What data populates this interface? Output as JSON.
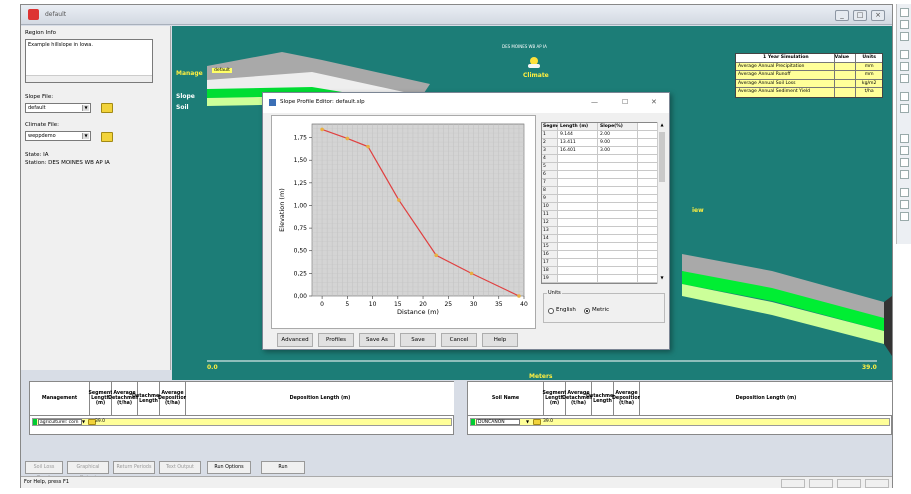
{
  "window": {
    "title": "default",
    "buttons": [
      "_",
      "□",
      "×"
    ]
  },
  "left_panel": {
    "region_label": "Region Info",
    "region_text": "Example hillslope in Iowa.",
    "slope_label": "Slope File:",
    "slope_value": "default",
    "climate_label": "Climate File:",
    "climate_value": "weppdemo",
    "state": "State: IA",
    "station": "Station: DES MOINES WB AP IA"
  },
  "canvas": {
    "station_title": "DES MOINES WB AP IA",
    "climate_label": "Climate",
    "management_label": "Manage",
    "management_tag": "default",
    "slope_label": "Slope",
    "soil_label": "Soil",
    "view_label": "iew",
    "axis_start": "0.0",
    "axis_end": "39.0",
    "axis_label": "Meters"
  },
  "sim_table": {
    "headers": [
      "1 Year Simulation",
      "Value",
      "Units"
    ],
    "rows": [
      {
        "name": "Average Annual Precipitation",
        "value": "",
        "unit": "mm"
      },
      {
        "name": "Average Annual Runoff",
        "value": "",
        "unit": "mm"
      },
      {
        "name": "Average Annual Soil Loss",
        "value": "",
        "unit": "kg/m2"
      },
      {
        "name": "Average Annual Sediment Yield",
        "value": "",
        "unit": "t/ha"
      }
    ]
  },
  "dialog": {
    "title": "Slope Profile Editor: default.slp",
    "controls": [
      "—",
      "☐",
      "✕"
    ],
    "segment_headers": [
      "Segment",
      "Length (m)",
      "Slope(%)"
    ],
    "segments": [
      {
        "seg": "1",
        "len": "9.144",
        "slope": "2.00"
      },
      {
        "seg": "2",
        "len": "13.411",
        "slope": "9.00"
      },
      {
        "seg": "3",
        "len": "16.401",
        "slope": "3.00"
      },
      {
        "seg": "4",
        "len": "",
        "slope": ""
      },
      {
        "seg": "5",
        "len": "",
        "slope": ""
      },
      {
        "seg": "6",
        "len": "",
        "slope": ""
      },
      {
        "seg": "7",
        "len": "",
        "slope": ""
      },
      {
        "seg": "8",
        "len": "",
        "slope": ""
      },
      {
        "seg": "9",
        "len": "",
        "slope": ""
      },
      {
        "seg": "10",
        "len": "",
        "slope": ""
      },
      {
        "seg": "11",
        "len": "",
        "slope": ""
      },
      {
        "seg": "12",
        "len": "",
        "slope": ""
      },
      {
        "seg": "13",
        "len": "",
        "slope": ""
      },
      {
        "seg": "14",
        "len": "",
        "slope": ""
      },
      {
        "seg": "15",
        "len": "",
        "slope": ""
      },
      {
        "seg": "16",
        "len": "",
        "slope": ""
      },
      {
        "seg": "17",
        "len": "",
        "slope": ""
      },
      {
        "seg": "18",
        "len": "",
        "slope": ""
      },
      {
        "seg": "19",
        "len": "",
        "slope": ""
      }
    ],
    "units_label": "Units",
    "units_options": [
      "English",
      "Metric"
    ],
    "units_selected": "Metric",
    "buttons": [
      "Advanced",
      "Profiles",
      "Save As",
      "Save",
      "Cancel",
      "Help"
    ]
  },
  "chart_data": {
    "type": "line",
    "title": "",
    "xlabel": "Distance (m)",
    "ylabel": "Elevation (m)",
    "xlim": [
      -2,
      40
    ],
    "ylim": [
      0,
      1.9
    ],
    "xticks": [
      "0",
      "5",
      "10",
      "15",
      "20",
      "25",
      "30",
      "35",
      "40"
    ],
    "yticks": [
      "0,00",
      "0,25",
      "0,50",
      "0,75",
      "1,00",
      "1,25",
      "1,50",
      "1,75"
    ],
    "series": [
      {
        "x": [
          0,
          5,
          9.1,
          15.2,
          22.6,
          29.6,
          39.0
        ],
        "y": [
          1.84,
          1.74,
          1.65,
          1.06,
          0.45,
          0.25,
          0.0
        ]
      }
    ],
    "line_color": "#e04040",
    "marker_color": "#e8b040",
    "grid": true
  },
  "bottom_left": {
    "headers": [
      "Management",
      "Segment Length (m)",
      "Average Detachment (t/ha)",
      "Detachment Length",
      "Average Deposition (t/ha)",
      "Deposition Length (m)"
    ],
    "row": {
      "name": "agriculturel: corn",
      "length": "39.0"
    }
  },
  "bottom_right": {
    "headers": [
      "Soil Name",
      "Segment Length (m)",
      "Average Detachment (t/ha)",
      "Detachment Length",
      "Average Deposition (t/ha)",
      "Deposition Length (m)"
    ],
    "row": {
      "name": "DUNCANON",
      "length": "39.0"
    }
  },
  "bottom_buttons": [
    {
      "label": "Soil Loss Graph",
      "enabled": false
    },
    {
      "label": "Graphical Output",
      "enabled": false
    },
    {
      "label": "Return Periods",
      "enabled": false
    },
    {
      "label": "Text Output",
      "enabled": false
    },
    {
      "label": "Run Options",
      "enabled": true
    },
    {
      "label": "Run",
      "enabled": true
    }
  ],
  "status": "For Help, press F1"
}
